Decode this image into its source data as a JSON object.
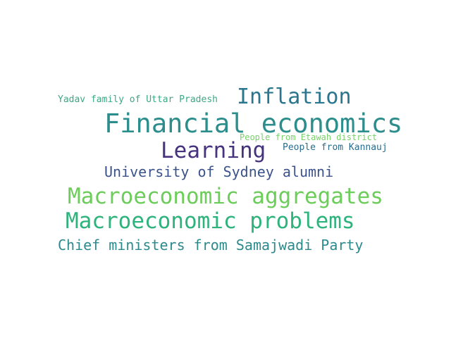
{
  "words": [
    {
      "text": "Yadav family of Uttar Pradesh",
      "color": "#3aa985"
    },
    {
      "text": "Inflation",
      "color": "#2a768e"
    },
    {
      "text": "Financial economics",
      "color": "#2b8e8c"
    },
    {
      "text": "People from Etawah district",
      "color": "#7ad06a"
    },
    {
      "text": "Learning",
      "color": "#46327e"
    },
    {
      "text": "People from Kannauj",
      "color": "#2a6d8e"
    },
    {
      "text": "University of Sydney alumni",
      "color": "#3b528b"
    },
    {
      "text": "Macroeconomic aggregates",
      "color": "#6ccd5a"
    },
    {
      "text": "Macroeconomic problems",
      "color": "#2eb37c"
    },
    {
      "text": "Chief ministers from Samajwadi Party",
      "color": "#2c8a8d"
    }
  ]
}
